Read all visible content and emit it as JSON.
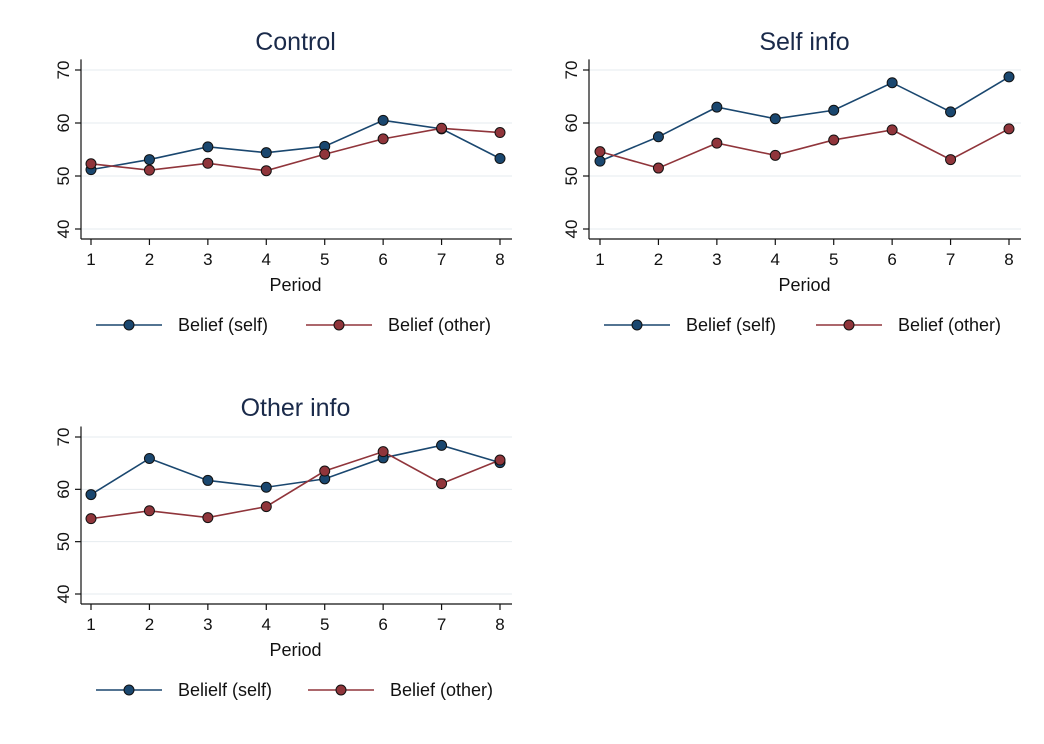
{
  "colors": {
    "self": "#1a476f",
    "other": "#90353b"
  },
  "chart_data": [
    {
      "type": "line",
      "title": "Control",
      "xlabel": "Period",
      "ylabel": "",
      "x": [
        1,
        2,
        3,
        4,
        5,
        6,
        7,
        8
      ],
      "x_ticks": [
        "1",
        "2",
        "3",
        "4",
        "5",
        "6",
        "7",
        "8"
      ],
      "ylim": [
        38,
        72
      ],
      "y_ticks": [
        "40",
        "50",
        "60",
        "70"
      ],
      "grid": true,
      "legend": "bottom",
      "series": [
        {
          "name": "Belief (self)",
          "values": [
            51.2,
            53.1,
            55.5,
            54.4,
            55.6,
            60.5,
            58.9,
            53.3
          ]
        },
        {
          "name": "Belief (other)",
          "values": [
            52.3,
            51.1,
            52.4,
            51.0,
            54.1,
            57.0,
            59.0,
            58.2
          ]
        }
      ]
    },
    {
      "type": "line",
      "title": "Self info",
      "xlabel": "Period",
      "ylabel": "",
      "x": [
        1,
        2,
        3,
        4,
        5,
        6,
        7,
        8
      ],
      "x_ticks": [
        "1",
        "2",
        "3",
        "4",
        "5",
        "6",
        "7",
        "8"
      ],
      "ylim": [
        38,
        72
      ],
      "y_ticks": [
        "40",
        "50",
        "60",
        "70"
      ],
      "grid": true,
      "legend": "bottom",
      "series": [
        {
          "name": "Belief (self)",
          "values": [
            52.8,
            57.4,
            63.0,
            60.8,
            62.4,
            67.6,
            62.1,
            68.7
          ]
        },
        {
          "name": "Belief (other)",
          "values": [
            54.6,
            51.5,
            56.2,
            53.9,
            56.8,
            58.7,
            53.1,
            58.9
          ]
        }
      ]
    },
    {
      "type": "line",
      "title": "Other info",
      "xlabel": "Period",
      "ylabel": "",
      "x": [
        1,
        2,
        3,
        4,
        5,
        6,
        7,
        8
      ],
      "x_ticks": [
        "1",
        "2",
        "3",
        "4",
        "5",
        "6",
        "7",
        "8"
      ],
      "ylim": [
        38,
        72
      ],
      "y_ticks": [
        "40",
        "50",
        "60",
        "70"
      ],
      "grid": true,
      "legend": "bottom",
      "series": [
        {
          "name": "Belielf (self)",
          "values": [
            59.0,
            65.9,
            61.7,
            60.4,
            62.0,
            66.0,
            68.4,
            65.1
          ]
        },
        {
          "name": "Belief (other)",
          "values": [
            54.4,
            55.9,
            54.6,
            56.7,
            63.5,
            67.2,
            61.1,
            65.6
          ]
        }
      ]
    }
  ]
}
